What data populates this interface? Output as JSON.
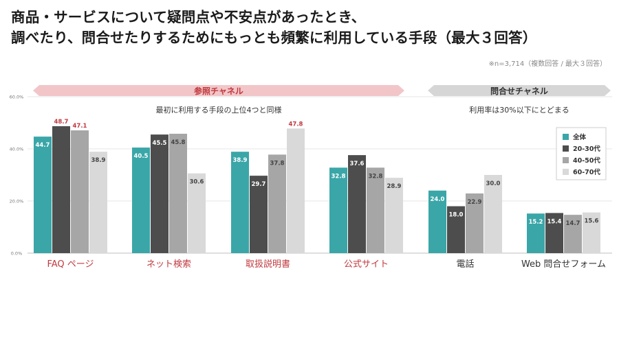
{
  "title_line1": "商品・サービスについて疑問点や不安点があったとき、",
  "title_line2": "調べたり、問合せたりするためにもっとも頻繁に利用している手段（最大３回答）",
  "note": "※n=3,714（複数回答 / 最大３回答）",
  "colors": {
    "series": [
      "#3aa6a8",
      "#4d4d4d",
      "#a6a6a6",
      "#d9d9d9"
    ],
    "highlight": "#c0393e",
    "ref_band": "#f2c6c8",
    "call_band": "#d6d6d6"
  },
  "bands": {
    "reference": {
      "label": "参照チャネル",
      "sub": "最初に利用する手段の上位4つと同様"
    },
    "inquiry": {
      "label": "問合せチャネル",
      "sub": "利用率は30%以下にとどまる"
    }
  },
  "chart_data": {
    "type": "bar",
    "title": "商品・サービスについて疑問点や不安点があったとき、調べたり、問合せたりするためにもっとも頻繁に利用している手段（最大３回答）",
    "categories": [
      "FAQ ページ",
      "ネット検索",
      "取扱説明書",
      "公式サイト",
      "電話",
      "Web 問合せフォーム"
    ],
    "category_highlight": [
      true,
      true,
      true,
      true,
      false,
      false
    ],
    "series": [
      {
        "name": "全体",
        "values": [
          44.7,
          40.5,
          38.9,
          32.8,
          24.0,
          15.2
        ]
      },
      {
        "name": "20-30代",
        "values": [
          48.7,
          45.5,
          29.7,
          37.6,
          18.0,
          15.4
        ]
      },
      {
        "name": "40-50代",
        "values": [
          47.1,
          45.8,
          37.8,
          32.8,
          22.9,
          14.7
        ]
      },
      {
        "name": "60-70代",
        "values": [
          38.9,
          30.6,
          47.8,
          28.9,
          30.0,
          15.6
        ]
      }
    ],
    "highlighted_values": [
      [
        0,
        1
      ],
      [
        0,
        2
      ],
      [
        2,
        3
      ]
    ],
    "ylim": [
      0,
      60
    ],
    "yticks": [
      "0.0%",
      "20.0%",
      "40.0%",
      "60.0%"
    ],
    "ytick_values": [
      0,
      20,
      40,
      60
    ],
    "xlabel": "",
    "ylabel": "",
    "legend_position": "right",
    "grid": true
  }
}
